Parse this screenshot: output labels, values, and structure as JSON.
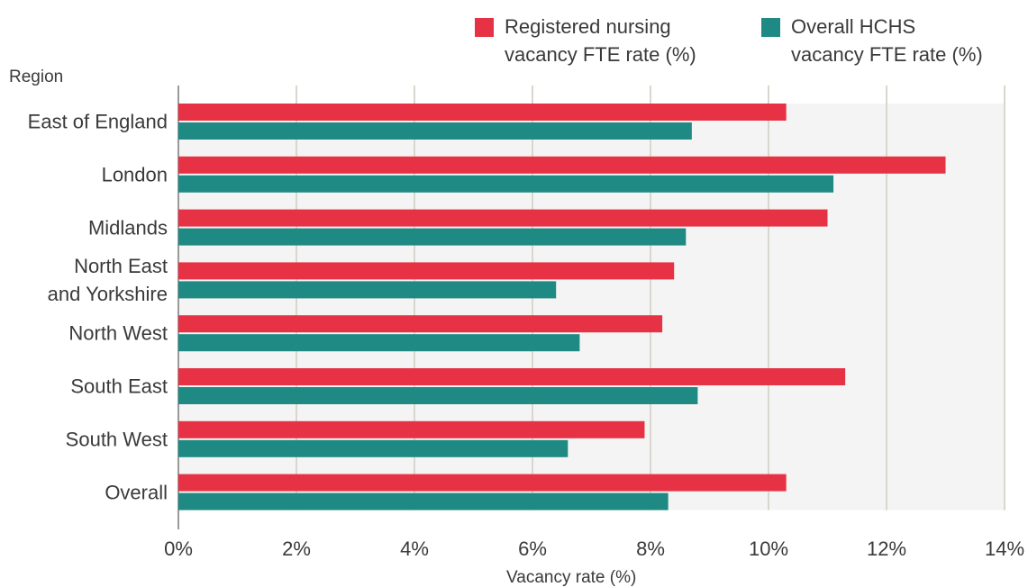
{
  "chart_data": {
    "type": "bar",
    "orientation": "horizontal",
    "y_axis_label": "Region",
    "x_axis_label": "Vacancy rate (%)",
    "categories": [
      "East of England",
      "London",
      "Midlands",
      "North East\nand Yorkshire",
      "North West",
      "South East",
      "South West",
      "Overall"
    ],
    "series": [
      {
        "name": "Registered nursing\nvacancy FTE rate (%)",
        "color": "#e63244",
        "values": [
          10.3,
          13.0,
          11.0,
          8.4,
          8.2,
          11.3,
          7.9,
          10.3
        ]
      },
      {
        "name": "Overall HCHS\nvacancy FTE rate (%)",
        "color": "#1f8a84",
        "values": [
          8.7,
          11.1,
          8.6,
          6.4,
          6.8,
          8.8,
          6.6,
          8.3
        ]
      }
    ],
    "xlim": [
      0,
      14
    ],
    "xticks": [
      {
        "value": 0,
        "label": "0%"
      },
      {
        "value": 2,
        "label": "2%"
      },
      {
        "value": 4,
        "label": "4%"
      },
      {
        "value": 6,
        "label": "6%"
      },
      {
        "value": 8,
        "label": "8%"
      },
      {
        "value": 10,
        "label": "10%"
      },
      {
        "value": 12,
        "label": "12%"
      },
      {
        "value": 14,
        "label": "14%"
      }
    ],
    "grid": true
  }
}
